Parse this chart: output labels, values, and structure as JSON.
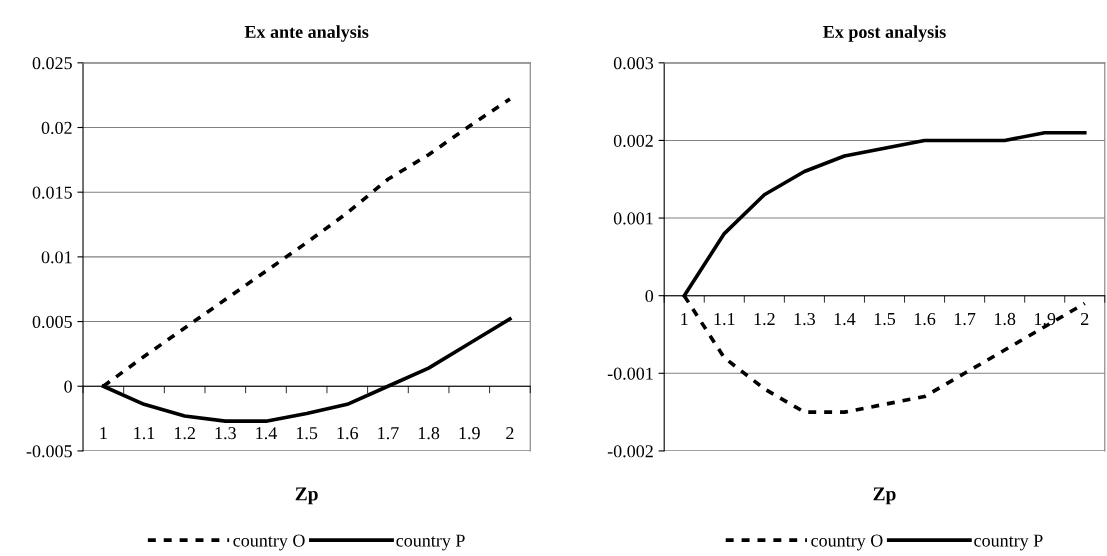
{
  "chart_data": [
    {
      "type": "line",
      "title": "Ex ante analysis",
      "xlabel": "Zp",
      "categories": [
        "1",
        "1.1",
        "1.2",
        "1.3",
        "1.4",
        "1.5",
        "1.6",
        "1.7",
        "1.8",
        "1.9",
        "2"
      ],
      "series": [
        {
          "name": "country O",
          "color": "#000000",
          "line_style": "dashed",
          "values": [
            0,
            0.0023,
            0.0045,
            0.0067,
            0.0089,
            0.0111,
            0.0134,
            0.016,
            0.0179,
            0.0201,
            0.0222
          ]
        },
        {
          "name": "country P",
          "color": "#000000",
          "line_style": "solid",
          "values": [
            0,
            -0.0014,
            -0.0023,
            -0.0027,
            -0.0027,
            -0.0021,
            -0.0014,
            0,
            0.0014,
            0.0033,
            0.0052
          ]
        }
      ],
      "ylim": [
        -0.005,
        0.025
      ],
      "yticks": [
        -0.005,
        0,
        0.005,
        0.01,
        0.015,
        0.02,
        0.025
      ],
      "grid": "y",
      "legend": "bottom",
      "marker": "none"
    },
    {
      "type": "line",
      "title": "Ex post analysis",
      "xlabel": "Zp",
      "categories": [
        "1",
        "1.1",
        "1.2",
        "1.3",
        "1.4",
        "1.5",
        "1.6",
        "1.7",
        "1.8",
        "1.9",
        "2"
      ],
      "series": [
        {
          "name": "country O",
          "color": "#000000",
          "line_style": "dashed",
          "values": [
            0,
            -0.0008,
            -0.0012,
            -0.0015,
            -0.0015,
            -0.0014,
            -0.0013,
            -0.001,
            -0.0007,
            -0.0004,
            -0.0001
          ]
        },
        {
          "name": "country P",
          "color": "#000000",
          "line_style": "solid",
          "values": [
            0,
            0.0008,
            0.0013,
            0.0016,
            0.0018,
            0.0019,
            0.002,
            0.002,
            0.002,
            0.0021,
            0.0021
          ]
        }
      ],
      "ylim": [
        -0.002,
        0.003
      ],
      "yticks": [
        -0.002,
        -0.001,
        0,
        0.001,
        0.002,
        0.003
      ],
      "grid": "y",
      "legend": "bottom",
      "marker": "none"
    }
  ]
}
